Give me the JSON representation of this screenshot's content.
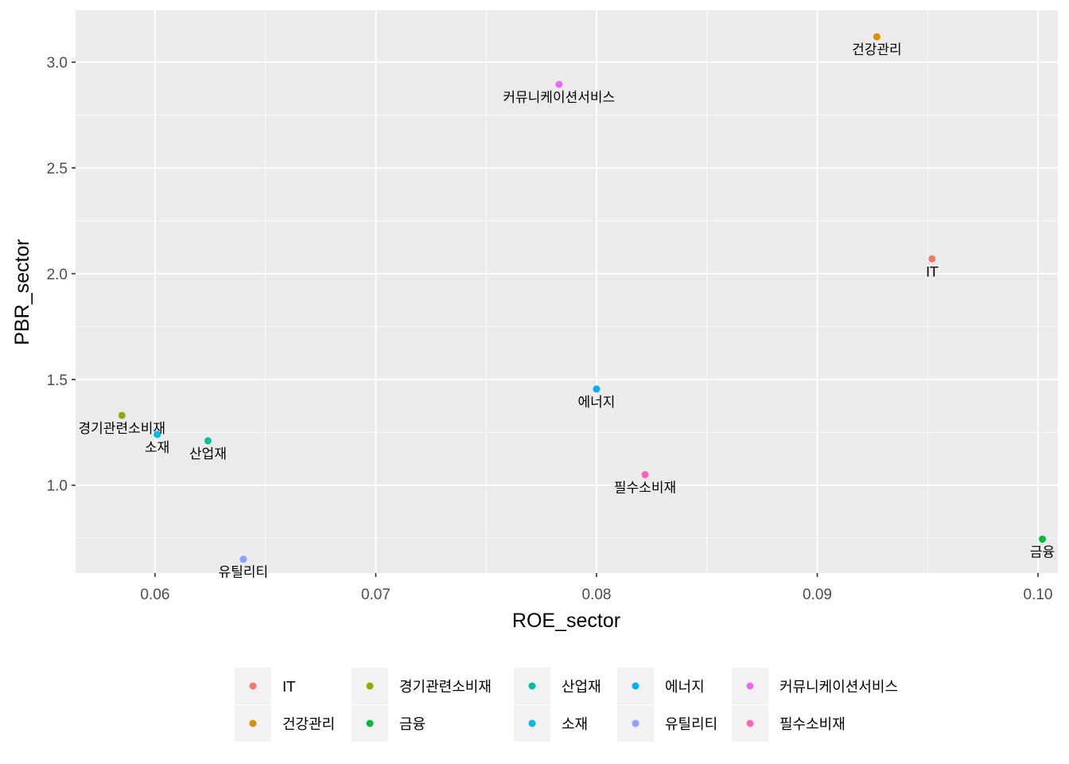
{
  "chart_data": {
    "type": "scatter",
    "title": "",
    "xlabel": "ROE_sector",
    "ylabel": "PBR_sector",
    "xlim": [
      0.0564,
      0.1009
    ],
    "ylim": [
      0.585,
      3.245
    ],
    "xticks": [
      0.06,
      0.07,
      0.08,
      0.09,
      0.1
    ],
    "xtick_labels": [
      "0.06",
      "0.07",
      "0.08",
      "0.09",
      "0.10"
    ],
    "yticks": [
      1.0,
      1.5,
      2.0,
      2.5,
      3.0
    ],
    "ytick_labels": [
      "1.0",
      "1.5",
      "2.0",
      "2.5",
      "3.0"
    ],
    "grid": true,
    "legend_position": "bottom",
    "series": [
      {
        "name": "IT",
        "color": "#F8766D",
        "x": 0.0952,
        "y": 2.07
      },
      {
        "name": "건강관리",
        "color": "#D39200",
        "x": 0.0927,
        "y": 3.12
      },
      {
        "name": "경기관련소비재",
        "color": "#93AA00",
        "x": 0.0585,
        "y": 1.33
      },
      {
        "name": "금융",
        "color": "#00BA38",
        "x": 0.1002,
        "y": 0.745
      },
      {
        "name": "산업재",
        "color": "#00C19F",
        "x": 0.0624,
        "y": 1.21
      },
      {
        "name": "소재",
        "color": "#00B9E3",
        "x": 0.0601,
        "y": 1.24
      },
      {
        "name": "에너지",
        "color": "#00ADFA",
        "x": 0.08,
        "y": 1.455
      },
      {
        "name": "유틸리티",
        "color": "#8FA0FF",
        "x": 0.064,
        "y": 0.65
      },
      {
        "name": "커뮤니케이션서비스",
        "color": "#E76BF3",
        "x": 0.0783,
        "y": 2.895
      },
      {
        "name": "필수소비재",
        "color": "#FF62BC",
        "x": 0.0822,
        "y": 1.05
      }
    ]
  }
}
